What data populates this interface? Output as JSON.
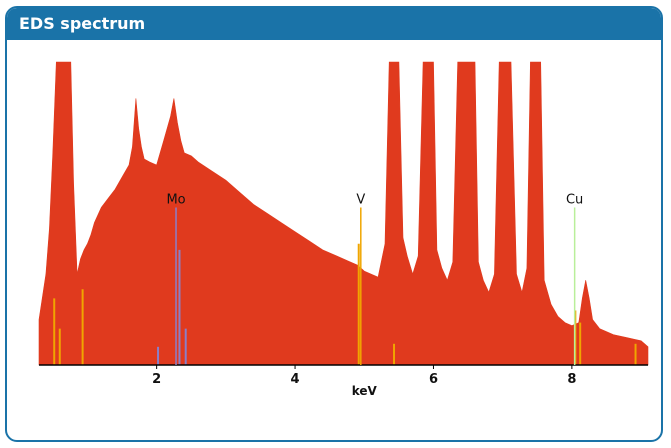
{
  "panel": {
    "title": "EDS spectrum"
  },
  "chart_data": {
    "type": "area",
    "title": "",
    "xlabel": "keV",
    "ylabel": "",
    "xlim": [
      0.3,
      9.1
    ],
    "ylim": [
      0,
      100
    ],
    "xticks": [
      2,
      4,
      6,
      8
    ],
    "grid": false,
    "colors": {
      "fill": "#e03a1e",
      "marker_orange": "#f0a500",
      "marker_purple": "#8a7fc8",
      "marker_green": "#b9ef9a",
      "axis": "#000000"
    },
    "series": [
      {
        "x": [
          0.3,
          0.4,
          0.45,
          0.5,
          0.55,
          0.58,
          0.62,
          0.72,
          0.76,
          0.8,
          0.85,
          0.9,
          0.95,
          1.0,
          1.05,
          1.1,
          1.2,
          1.3,
          1.4,
          1.5,
          1.6,
          1.65,
          1.7,
          1.74,
          1.78,
          1.82,
          1.9,
          2.0,
          2.1,
          2.2,
          2.25,
          2.3,
          2.35,
          2.4,
          2.5,
          2.6,
          2.8,
          3.0,
          3.2,
          3.4,
          3.6,
          3.8,
          4.0,
          4.2,
          4.4,
          4.6,
          4.8,
          4.9,
          4.95,
          5.0,
          5.1,
          5.2,
          5.3,
          5.36,
          5.4,
          5.45,
          5.5,
          5.56,
          5.62,
          5.7,
          5.78,
          5.85,
          5.92,
          5.96,
          6.0,
          6.05,
          6.12,
          6.2,
          6.28,
          6.35,
          6.4,
          6.45,
          6.5,
          6.55,
          6.6,
          6.65,
          6.72,
          6.8,
          6.88,
          6.95,
          7.0,
          7.05,
          7.12,
          7.2,
          7.28,
          7.35,
          7.4,
          7.45,
          7.5,
          7.55,
          7.6,
          7.7,
          7.8,
          7.9,
          8.0,
          8.1,
          8.15,
          8.2,
          8.25,
          8.3,
          8.4,
          8.5,
          8.6,
          8.8,
          9.0,
          9.1
        ],
        "y": [
          15,
          30,
          45,
          70,
          100,
          100,
          100,
          100,
          100,
          60,
          30,
          35,
          38,
          40,
          43,
          47,
          52,
          55,
          58,
          62,
          66,
          72,
          88,
          78,
          72,
          68,
          67,
          66,
          74,
          82,
          88,
          80,
          74,
          70,
          69,
          67,
          64,
          61,
          57,
          53,
          50,
          47,
          44,
          41,
          38,
          36,
          34,
          33,
          32,
          31,
          30,
          29,
          40,
          100,
          100,
          100,
          100,
          42,
          36,
          30,
          36,
          100,
          100,
          100,
          100,
          38,
          32,
          28,
          34,
          100,
          100,
          100,
          100,
          100,
          100,
          34,
          28,
          24,
          30,
          100,
          100,
          100,
          100,
          30,
          24,
          32,
          100,
          100,
          100,
          100,
          28,
          20,
          16,
          14,
          13,
          14,
          22,
          28,
          22,
          15,
          12,
          11,
          10,
          9,
          8,
          6
        ]
      }
    ],
    "markers": [
      {
        "label": "Mo",
        "x": 2.28,
        "height": 52,
        "color": "#8a7fc8"
      },
      {
        "label": "V",
        "x": 4.95,
        "height": 52,
        "color": "#f0a500"
      },
      {
        "label": "Cu",
        "x": 8.04,
        "height": 52,
        "color": "#b9ef9a"
      }
    ],
    "minor_lines": [
      {
        "x": 0.52,
        "height": 22,
        "color": "#f0a500"
      },
      {
        "x": 0.6,
        "height": 12,
        "color": "#f0a500"
      },
      {
        "x": 0.93,
        "height": 25,
        "color": "#f0a500"
      },
      {
        "x": 2.33,
        "height": 38,
        "color": "#8a7fc8"
      },
      {
        "x": 2.42,
        "height": 12,
        "color": "#8a7fc8"
      },
      {
        "x": 2.02,
        "height": 6,
        "color": "#8a7fc8"
      },
      {
        "x": 4.92,
        "height": 40,
        "color": "#f0a500"
      },
      {
        "x": 5.43,
        "height": 7,
        "color": "#f0a500"
      },
      {
        "x": 8.05,
        "height": 18,
        "color": "#f0a500"
      },
      {
        "x": 8.12,
        "height": 14,
        "color": "#f0a500"
      },
      {
        "x": 8.92,
        "height": 7,
        "color": "#f0a500"
      }
    ]
  }
}
